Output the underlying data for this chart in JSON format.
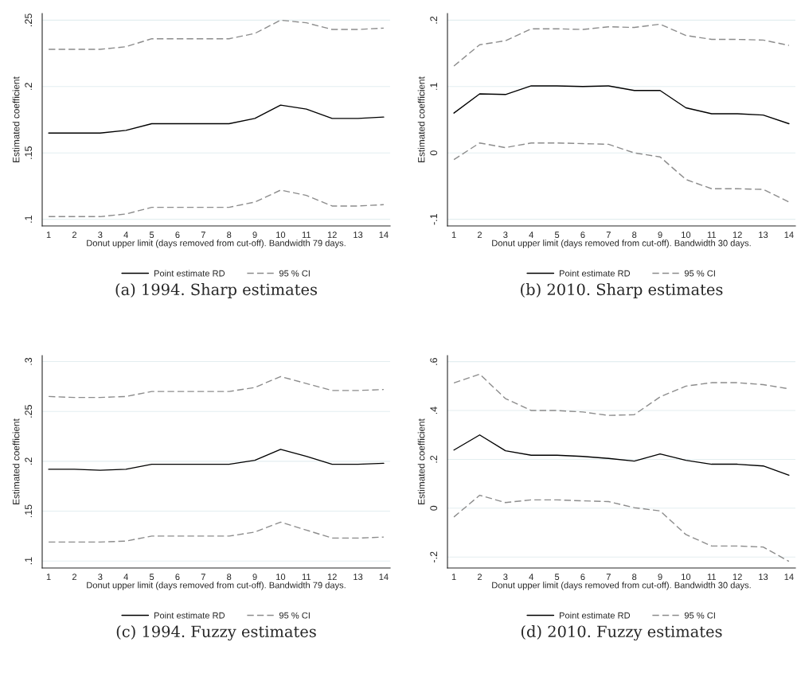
{
  "chart_data": [
    {
      "type": "line",
      "annotations": [
        "(a) 1994. Sharp estimates"
      ],
      "xlabel": "Donut upper limit (days removed from cut-off). Bandwidth 79 days.",
      "ylabel": "Estimated coefficient",
      "x": [
        1,
        2,
        3,
        4,
        5,
        6,
        7,
        8,
        9,
        10,
        11,
        12,
        13,
        14
      ],
      "xlim": [
        0.75,
        14.25
      ],
      "xticks": [
        1,
        2,
        3,
        4,
        5,
        6,
        7,
        8,
        9,
        10,
        11,
        12,
        13,
        14
      ],
      "ylim": [
        0.095,
        0.255
      ],
      "yticks": [
        {
          "value": 0.1,
          "label": ".1"
        },
        {
          "value": 0.15,
          "label": ".15"
        },
        {
          "value": 0.2,
          "label": ".2"
        },
        {
          "value": 0.25,
          "label": ".25"
        }
      ],
      "grid": "y",
      "legend": "bottom",
      "series": [
        {
          "name": "Point estimate RD",
          "color": "#000000",
          "line_style": "solid",
          "values": [
            0.165,
            0.165,
            0.165,
            0.167,
            0.172,
            0.172,
            0.172,
            0.172,
            0.176,
            0.186,
            0.183,
            0.176,
            0.176,
            0.177
          ]
        },
        {
          "name": "95 % CI",
          "color": "#8c8c8c",
          "line_style": "dashed",
          "values": [
            0.228,
            0.228,
            0.228,
            0.23,
            0.236,
            0.236,
            0.236,
            0.236,
            0.24,
            0.25,
            0.248,
            0.243,
            0.243,
            0.244
          ]
        },
        {
          "name": "95 % CI",
          "color": "#8c8c8c",
          "line_style": "dashed",
          "values": [
            0.102,
            0.102,
            0.102,
            0.104,
            0.109,
            0.109,
            0.109,
            0.109,
            0.113,
            0.122,
            0.118,
            0.11,
            0.11,
            0.111
          ]
        }
      ]
    },
    {
      "type": "line",
      "annotations": [
        "(b) 2010. Sharp estimates"
      ],
      "xlabel": "Donut upper limit (days removed from cut-off). Bandwidth 30 days.",
      "ylabel": "Estimated coefficient",
      "x": [
        1,
        2,
        3,
        4,
        5,
        6,
        7,
        8,
        9,
        10,
        11,
        12,
        13,
        14
      ],
      "xlim": [
        0.75,
        14.25
      ],
      "xticks": [
        1,
        2,
        3,
        4,
        5,
        6,
        7,
        8,
        9,
        10,
        11,
        12,
        13,
        14
      ],
      "ylim": [
        -0.11,
        0.21
      ],
      "yticks": [
        {
          "value": -0.1,
          "label": "-.1"
        },
        0,
        {
          "value": 0.1,
          "label": ".1"
        },
        {
          "value": 0.2,
          "label": ".2"
        }
      ],
      "grid": "y",
      "legend": "bottom",
      "series": [
        {
          "name": "Point estimate RD",
          "color": "#000000",
          "line_style": "solid",
          "values": [
            0.06,
            0.089,
            0.088,
            0.101,
            0.101,
            0.1,
            0.101,
            0.094,
            0.094,
            0.068,
            0.059,
            0.059,
            0.057,
            0.044
          ]
        },
        {
          "name": "95 % CI",
          "color": "#8c8c8c",
          "line_style": "dashed",
          "values": [
            0.131,
            0.163,
            0.169,
            0.187,
            0.187,
            0.186,
            0.19,
            0.189,
            0.194,
            0.177,
            0.171,
            0.171,
            0.17,
            0.162
          ]
        },
        {
          "name": "95 % CI",
          "color": "#8c8c8c",
          "line_style": "dashed",
          "values": [
            -0.01,
            0.015,
            0.008,
            0.015,
            0.015,
            0.014,
            0.013,
            0.0,
            -0.006,
            -0.04,
            -0.054,
            -0.054,
            -0.055,
            -0.074
          ]
        }
      ]
    },
    {
      "type": "line",
      "annotations": [
        "(c) 1994. Fuzzy estimates"
      ],
      "xlabel": "Donut upper limit (days removed from cut-off). Bandwidth 79 days.",
      "ylabel": "Estimated coefficient",
      "x": [
        1,
        2,
        3,
        4,
        5,
        6,
        7,
        8,
        9,
        10,
        11,
        12,
        13,
        14
      ],
      "xlim": [
        0.75,
        14.25
      ],
      "xticks": [
        1,
        2,
        3,
        4,
        5,
        6,
        7,
        8,
        9,
        10,
        11,
        12,
        13,
        14
      ],
      "ylim": [
        0.093,
        0.306
      ],
      "yticks": [
        {
          "value": 0.1,
          "label": ".1"
        },
        {
          "value": 0.15,
          "label": ".15"
        },
        {
          "value": 0.2,
          "label": ".2"
        },
        {
          "value": 0.25,
          "label": ".25"
        },
        {
          "value": 0.3,
          "label": ".3"
        }
      ],
      "grid": "y",
      "legend": "bottom",
      "series": [
        {
          "name": "Point estimate RD",
          "color": "#000000",
          "line_style": "solid",
          "values": [
            0.192,
            0.192,
            0.191,
            0.192,
            0.197,
            0.197,
            0.197,
            0.197,
            0.201,
            0.212,
            0.205,
            0.197,
            0.197,
            0.198
          ]
        },
        {
          "name": "95 % CI",
          "color": "#8c8c8c",
          "line_style": "dashed",
          "values": [
            0.265,
            0.264,
            0.264,
            0.265,
            0.27,
            0.27,
            0.27,
            0.27,
            0.274,
            0.285,
            0.278,
            0.271,
            0.271,
            0.272
          ]
        },
        {
          "name": "95 % CI",
          "color": "#8c8c8c",
          "line_style": "dashed",
          "values": [
            0.119,
            0.119,
            0.119,
            0.12,
            0.125,
            0.125,
            0.125,
            0.125,
            0.129,
            0.139,
            0.131,
            0.123,
            0.123,
            0.124
          ]
        }
      ]
    },
    {
      "type": "line",
      "annotations": [
        "(d) 2010. Fuzzy estimates"
      ],
      "xlabel": "Donut upper limit (days removed from cut-off). Bandwidth 30 days.",
      "ylabel": "Estimated coefficient",
      "x": [
        1,
        2,
        3,
        4,
        5,
        6,
        7,
        8,
        9,
        10,
        11,
        12,
        13,
        14
      ],
      "xlim": [
        0.75,
        14.25
      ],
      "xticks": [
        1,
        2,
        3,
        4,
        5,
        6,
        7,
        8,
        9,
        10,
        11,
        12,
        13,
        14
      ],
      "ylim": [
        -0.245,
        0.625
      ],
      "yticks": [
        {
          "value": -0.2,
          "label": "-.2"
        },
        0,
        {
          "value": 0.2,
          "label": ".2"
        },
        {
          "value": 0.4,
          "label": ".4"
        },
        {
          "value": 0.6,
          "label": ".6"
        }
      ],
      "grid": "y",
      "legend": "bottom",
      "series": [
        {
          "name": "Point estimate RD",
          "color": "#000000",
          "line_style": "solid",
          "values": [
            0.238,
            0.3,
            0.235,
            0.217,
            0.217,
            0.212,
            0.204,
            0.193,
            0.222,
            0.196,
            0.18,
            0.18,
            0.173,
            0.135
          ]
        },
        {
          "name": "95 % CI",
          "color": "#8c8c8c",
          "line_style": "dashed",
          "values": [
            0.513,
            0.549,
            0.449,
            0.4,
            0.4,
            0.394,
            0.38,
            0.383,
            0.456,
            0.5,
            0.514,
            0.514,
            0.506,
            0.489
          ]
        },
        {
          "name": "95 % CI",
          "color": "#8c8c8c",
          "line_style": "dashed",
          "values": [
            -0.036,
            0.053,
            0.023,
            0.034,
            0.034,
            0.03,
            0.027,
            0.002,
            -0.011,
            -0.108,
            -0.155,
            -0.155,
            -0.159,
            -0.218
          ]
        }
      ]
    }
  ]
}
